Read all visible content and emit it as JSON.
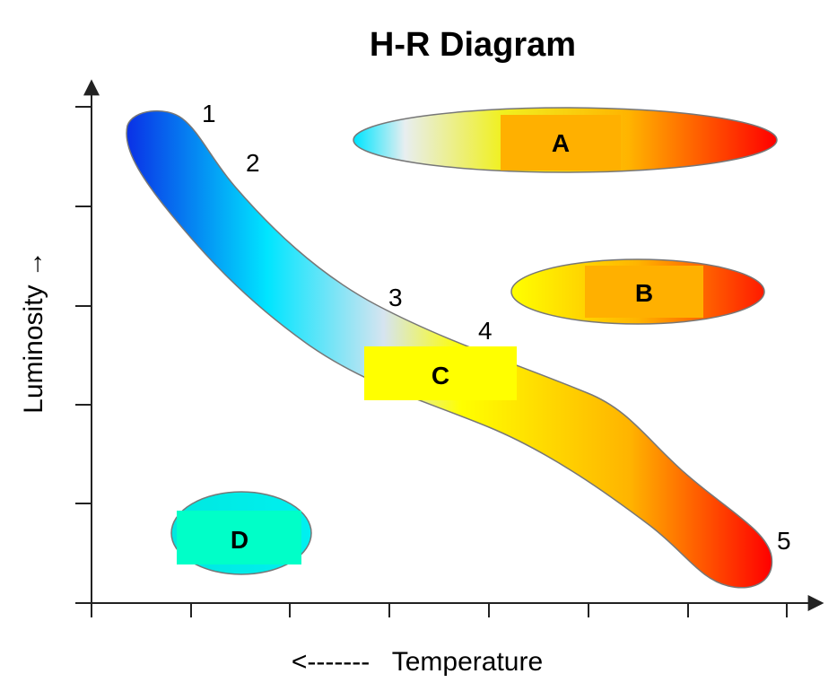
{
  "title": "H-R Diagram",
  "axes": {
    "x_label": "<-------   Temperature",
    "y_label": "Luminosity →"
  },
  "sequence_points": [
    "1",
    "2",
    "3",
    "4",
    "5"
  ],
  "regions": {
    "a": "A",
    "b": "B",
    "c": "C",
    "d": "D"
  },
  "colors": {
    "hot_blue": "#0a2fe6",
    "cyan": "#00e5ff",
    "pale": "#d6e4f0",
    "yellow": "#ffff00",
    "orange": "#ffb400",
    "red": "#ff0000",
    "label_orange": "#ffb000",
    "label_yellow": "#ffff00",
    "label_teal": "#00ffc8"
  }
}
